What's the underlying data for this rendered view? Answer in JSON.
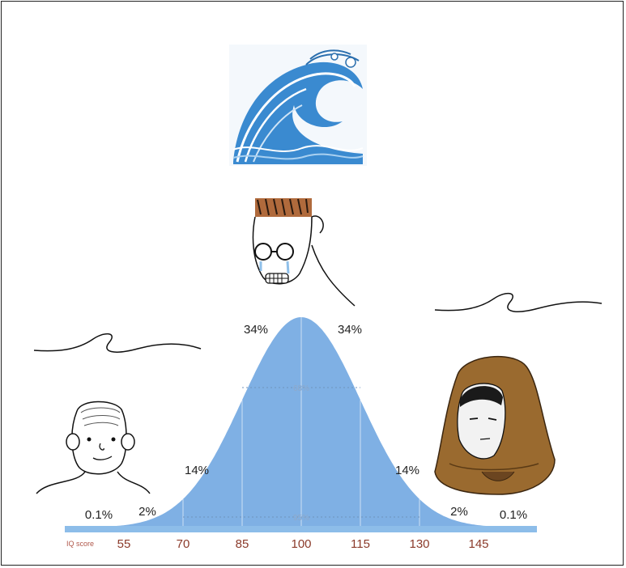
{
  "chart_data": {
    "type": "area",
    "title": "",
    "xlabel": "IQ score",
    "ylabel": "",
    "x_ticks": [
      "55",
      "70",
      "85",
      "100",
      "115",
      "130",
      "145"
    ],
    "segments": [
      {
        "range": [
          40,
          55
        ],
        "label": "0.1%"
      },
      {
        "range": [
          55,
          70
        ],
        "label": "2%"
      },
      {
        "range": [
          70,
          85
        ],
        "label": "14%"
      },
      {
        "range": [
          85,
          100
        ],
        "label": "34%"
      },
      {
        "range": [
          100,
          115
        ],
        "label": "34%"
      },
      {
        "range": [
          115,
          130
        ],
        "label": "14%"
      },
      {
        "range": [
          130,
          145
        ],
        "label": "2%"
      },
      {
        "range": [
          145,
          160
        ],
        "label": "0.1%"
      }
    ],
    "inner_labels": [
      "68%",
      "95%"
    ],
    "mean": 100,
    "sd": 15,
    "color": "#7fb0e4"
  },
  "colors": {
    "curve_fill": "#7fb0e4",
    "axis_bar": "#8dbde9",
    "tick_text": "#8b3a2a",
    "wave_blue": "#2f7fc4",
    "hood_brown": "#9a6a2f"
  },
  "icons": [
    "tsunami-wave-image",
    "squiggle-wave-icon",
    "simple-face-icon",
    "crying-glasses-face-icon",
    "hooded-face-icon"
  ]
}
